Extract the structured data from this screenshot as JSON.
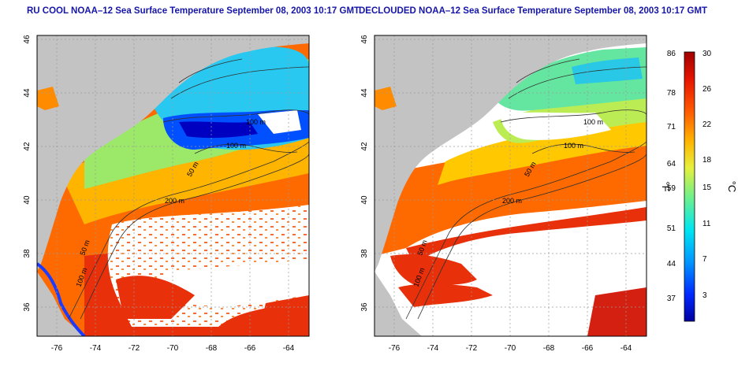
{
  "panels": [
    {
      "title": "RU COOL NOAA–12 Sea Surface Temperature September 08, 2003 10:17 GMT",
      "x_ticks": [
        "-76",
        "-74",
        "-72",
        "-70",
        "-68",
        "-66",
        "-64"
      ],
      "y_ticks": [
        "36",
        "38",
        "40",
        "42",
        "44",
        "46"
      ],
      "contour_labels": [
        "100 m",
        "100 m",
        "50 m",
        "200 m",
        "50 m",
        "100 m"
      ]
    },
    {
      "title": "DECLOUDED NOAA–12 Sea Surface Temperature September 08, 2003 10:17 GMT",
      "x_ticks": [
        "-76",
        "-74",
        "-72",
        "-70",
        "-68",
        "-66",
        "-64"
      ],
      "y_ticks": [
        "36",
        "38",
        "40",
        "42",
        "44",
        "46"
      ],
      "contour_labels": [
        "100 m",
        "100 m",
        "50 m",
        "200 m",
        "50 m",
        "100 m"
      ]
    }
  ],
  "colorbar": {
    "fahrenheit_unit": "°F",
    "celsius_unit": "°C",
    "fahrenheit_ticks": [
      "86",
      "78",
      "71",
      "64",
      "59",
      "51",
      "44",
      "37"
    ],
    "celsius_ticks": [
      "30",
      "26",
      "22",
      "18",
      "15",
      "11",
      "7",
      "3"
    ],
    "colors": [
      "#0000a0",
      "#0028ff",
      "#0096ff",
      "#00e6f0",
      "#6ef08c",
      "#e6f03c",
      "#ffb400",
      "#ff5a00",
      "#e61400",
      "#a00000"
    ]
  },
  "colors": {
    "land": "#c3c3c3",
    "cloud": "#ffffff",
    "title": "#1515a8"
  }
}
